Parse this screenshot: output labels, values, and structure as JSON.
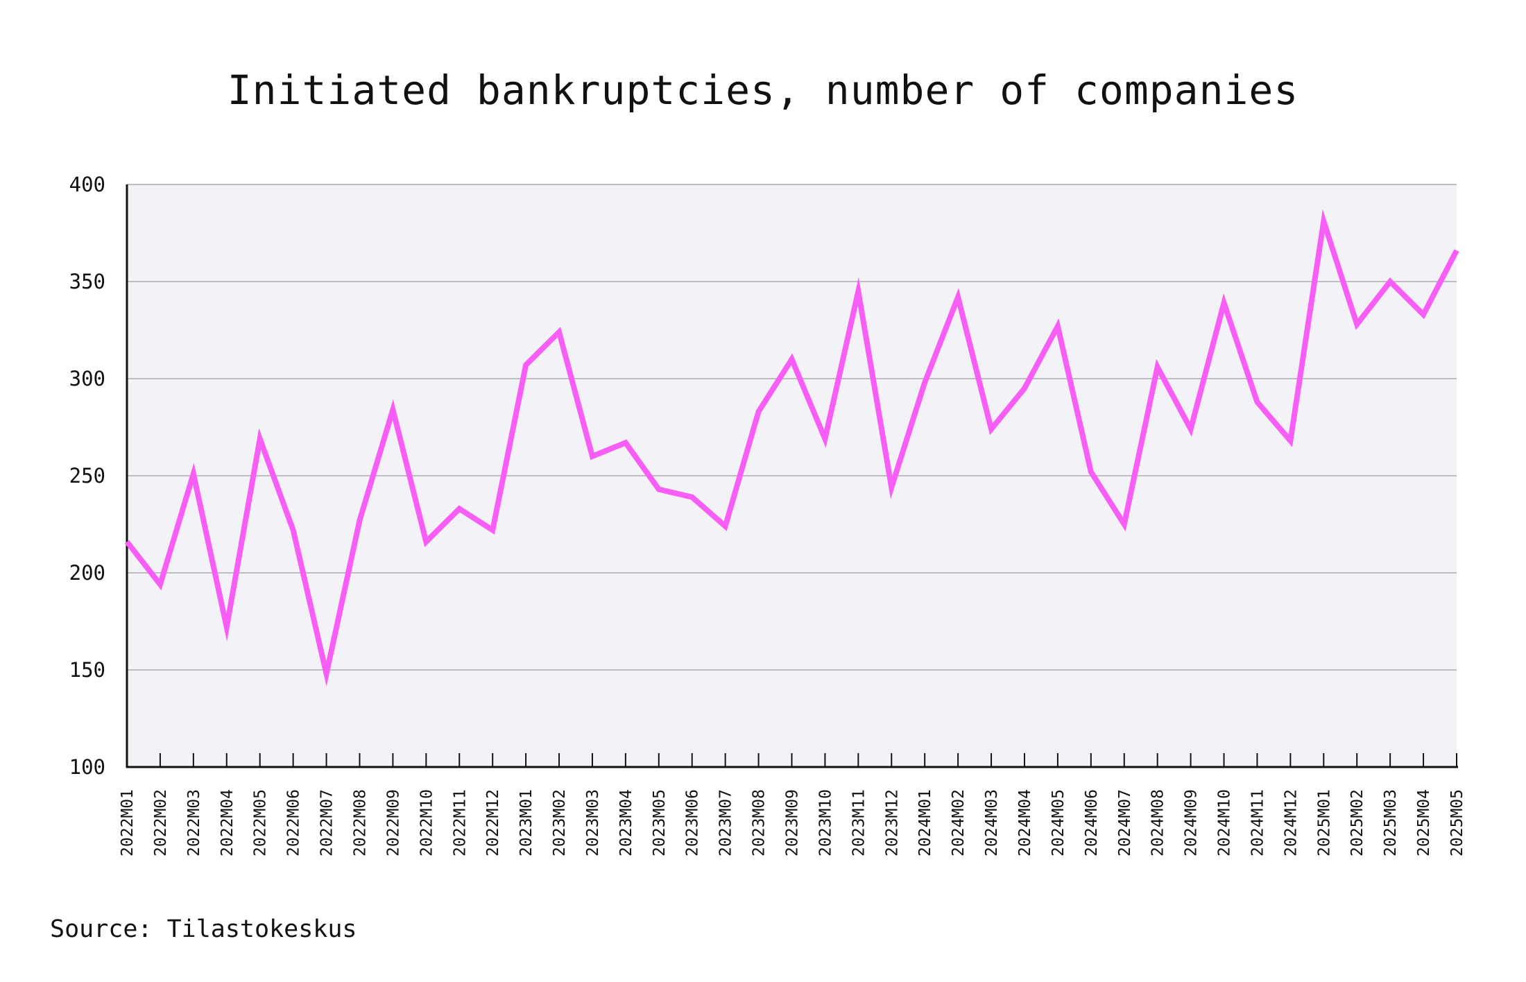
{
  "chart_data": {
    "type": "line",
    "title": "Initiated bankruptcies, number of companies",
    "xlabel": "",
    "ylabel": "",
    "ylim": [
      100,
      400
    ],
    "yticks": [
      100,
      150,
      200,
      250,
      300,
      350,
      400
    ],
    "grid": true,
    "legend": "none",
    "categories": [
      "2022M01",
      "2022M02",
      "2022M03",
      "2022M04",
      "2022M05",
      "2022M06",
      "2022M07",
      "2022M08",
      "2022M09",
      "2022M10",
      "2022M11",
      "2022M12",
      "2023M01",
      "2023M02",
      "2023M03",
      "2023M04",
      "2023M05",
      "2023M06",
      "2023M07",
      "2023M08",
      "2023M09",
      "2023M10",
      "2023M11",
      "2023M12",
      "2024M01",
      "2024M02",
      "2024M03",
      "2024M04",
      "2024M05",
      "2024M06",
      "2024M07",
      "2024M08",
      "2024M09",
      "2024M10",
      "2024M11",
      "2024M12",
      "2025M01",
      "2025M02",
      "2025M03",
      "2025M04",
      "2025M05"
    ],
    "series": [
      {
        "values": [
          216,
          194,
          251,
          172,
          269,
          222,
          148,
          227,
          284,
          216,
          233,
          222,
          307,
          324,
          260,
          267,
          243,
          239,
          224,
          283,
          310,
          269,
          345,
          244,
          298,
          342,
          274,
          295,
          327,
          252,
          225,
          306,
          274,
          339,
          288,
          268,
          381,
          328,
          350,
          333,
          366
        ],
        "color": "#f75ef5"
      }
    ],
    "colors": {
      "line": "#f75ef5",
      "plot_background": "#f3f2f7",
      "grid": "#bdbdbf",
      "axis": "#111111"
    }
  },
  "source": "Source: Tilastokeskus"
}
